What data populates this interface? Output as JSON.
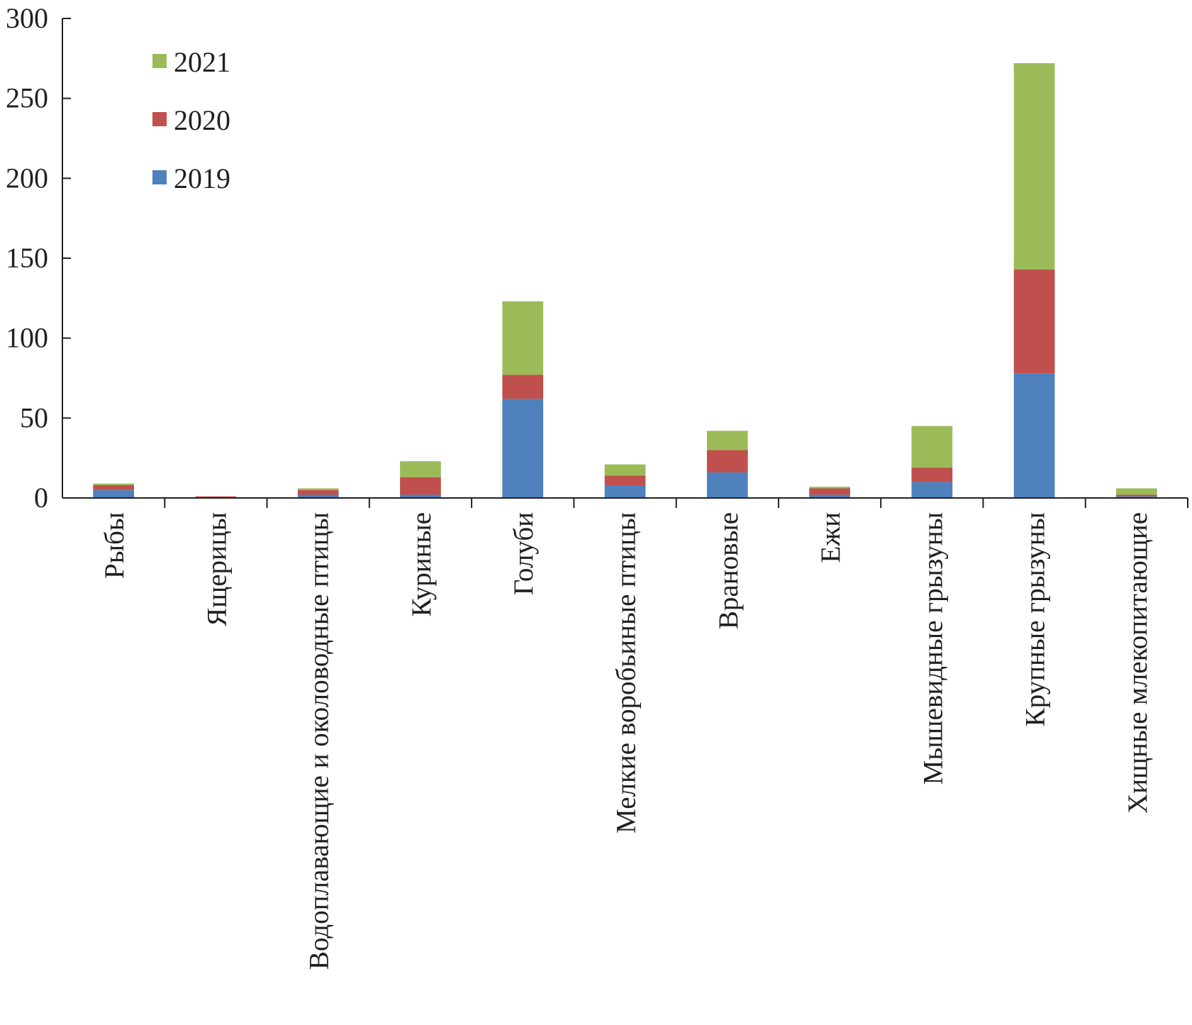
{
  "chart_data": {
    "type": "bar",
    "stacked": true,
    "title": "",
    "xlabel": "",
    "ylabel": "",
    "ylim": [
      0,
      300
    ],
    "yticks": [
      0,
      50,
      100,
      150,
      200,
      250,
      300
    ],
    "ytick_labels": [
      "0",
      "50",
      "100",
      "150",
      "200",
      "250",
      "300"
    ],
    "legend_position": "top-left",
    "categories": [
      "Рыбы",
      "Ящерицы",
      "Водоплавающие и околоводные птицы",
      "Куриные",
      "Голуби",
      "Мелкие воробьиные птицы",
      "Врановые",
      "Ежи",
      "Мышевидные грызуны",
      "Крупные грызуны",
      "Хищные млекопитающие"
    ],
    "series": [
      {
        "name": "2019",
        "color": "#4f81bd",
        "values": [
          5,
          0,
          2,
          2,
          62,
          8,
          16,
          2,
          10,
          78,
          1
        ]
      },
      {
        "name": "2020",
        "color": "#c0504d",
        "values": [
          3,
          1,
          3,
          11,
          15,
          6,
          14,
          4,
          9,
          65,
          1
        ]
      },
      {
        "name": "2021",
        "color": "#9bbb59",
        "values": [
          1,
          0,
          1,
          10,
          46,
          7,
          12,
          1,
          26,
          129,
          4
        ]
      }
    ],
    "legend_order": [
      "2021",
      "2020",
      "2019"
    ]
  }
}
